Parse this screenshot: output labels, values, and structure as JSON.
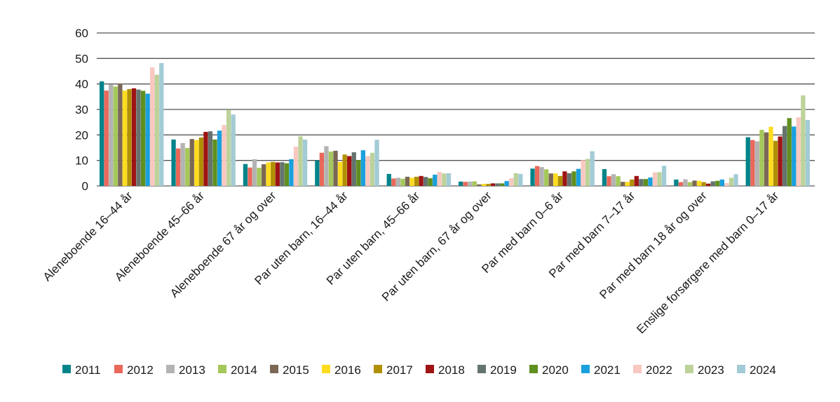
{
  "chart_data": {
    "type": "bar",
    "title": "",
    "xlabel": "",
    "ylabel": "",
    "ylim": [
      0,
      60
    ],
    "yticks": [
      0,
      10,
      20,
      30,
      40,
      50,
      60
    ],
    "grid": true,
    "legend_placement": "bottom",
    "categories": [
      "Aleneboende 16–44 år",
      "Aleneboende 45–66 år",
      "Aleneboende 67 år og over",
      "Par uten barn, 16–44 år",
      "Par uten barn, 45–66 år",
      "Par uten barn, 67 år og over",
      "Par med barn 0–6 år",
      "Par med barn 7–17 år",
      "Par med barn 18 år og over",
      "Enslige forsørgere med barn 0–17 år"
    ],
    "series": [
      {
        "name": "2011",
        "color": "#00848a",
        "values": [
          41.0,
          18.2,
          8.6,
          10.0,
          4.7,
          1.7,
          6.8,
          6.6,
          2.5,
          19.1
        ]
      },
      {
        "name": "2012",
        "color": "#e8685a",
        "values": [
          37.4,
          14.7,
          7.2,
          13.0,
          2.9,
          1.6,
          7.8,
          3.8,
          1.5,
          18.0
        ]
      },
      {
        "name": "2013",
        "color": "#b3b3b3",
        "values": [
          39.7,
          16.8,
          10.5,
          15.6,
          3.2,
          1.7,
          7.4,
          4.6,
          2.6,
          17.5
        ]
      },
      {
        "name": "2014",
        "color": "#a5c85a",
        "values": [
          39.0,
          14.9,
          7.1,
          13.5,
          2.8,
          1.8,
          6.5,
          3.8,
          1.5,
          22.0
        ]
      },
      {
        "name": "2015",
        "color": "#7a6855",
        "values": [
          40.2,
          18.4,
          8.5,
          13.8,
          3.6,
          0.6,
          4.9,
          1.6,
          2.1,
          21.0
        ]
      },
      {
        "name": "2016",
        "color": "#fddc1e",
        "values": [
          37.4,
          18.0,
          9.2,
          9.4,
          3.2,
          0.8,
          4.9,
          1.6,
          2.0,
          23.2
        ]
      },
      {
        "name": "2017",
        "color": "#b09000",
        "values": [
          38.0,
          19.0,
          9.4,
          12.3,
          3.6,
          0.8,
          3.9,
          2.5,
          1.5,
          17.7
        ]
      },
      {
        "name": "2018",
        "color": "#9e1414",
        "values": [
          38.3,
          21.2,
          9.2,
          11.7,
          3.9,
          1.0,
          5.7,
          3.9,
          0.9,
          19.4
        ]
      },
      {
        "name": "2019",
        "color": "#65736e",
        "values": [
          37.8,
          21.4,
          9.3,
          13.2,
          3.5,
          1.0,
          5.0,
          2.7,
          1.8,
          23.5
        ]
      },
      {
        "name": "2020",
        "color": "#5f8f1f",
        "values": [
          37.3,
          18.2,
          8.9,
          10.1,
          3.0,
          1.0,
          5.7,
          2.7,
          2.0,
          26.6
        ]
      },
      {
        "name": "2021",
        "color": "#1aa0dc",
        "values": [
          36.2,
          21.7,
          10.5,
          14.0,
          4.4,
          1.9,
          6.7,
          3.3,
          2.5,
          23.3
        ]
      },
      {
        "name": "2022",
        "color": "#f9c8c0",
        "values": [
          46.5,
          23.9,
          15.4,
          11.7,
          5.5,
          3.0,
          10.1,
          5.3,
          1.1,
          26.9
        ]
      },
      {
        "name": "2023",
        "color": "#bcd29a",
        "values": [
          43.6,
          29.9,
          19.5,
          13.0,
          4.9,
          5.0,
          10.6,
          5.4,
          3.2,
          35.5
        ]
      },
      {
        "name": "2024",
        "color": "#a3cbd6",
        "values": [
          48.2,
          28.0,
          18.2,
          18.1,
          5.0,
          4.7,
          13.6,
          7.9,
          4.6,
          25.9
        ]
      }
    ]
  }
}
